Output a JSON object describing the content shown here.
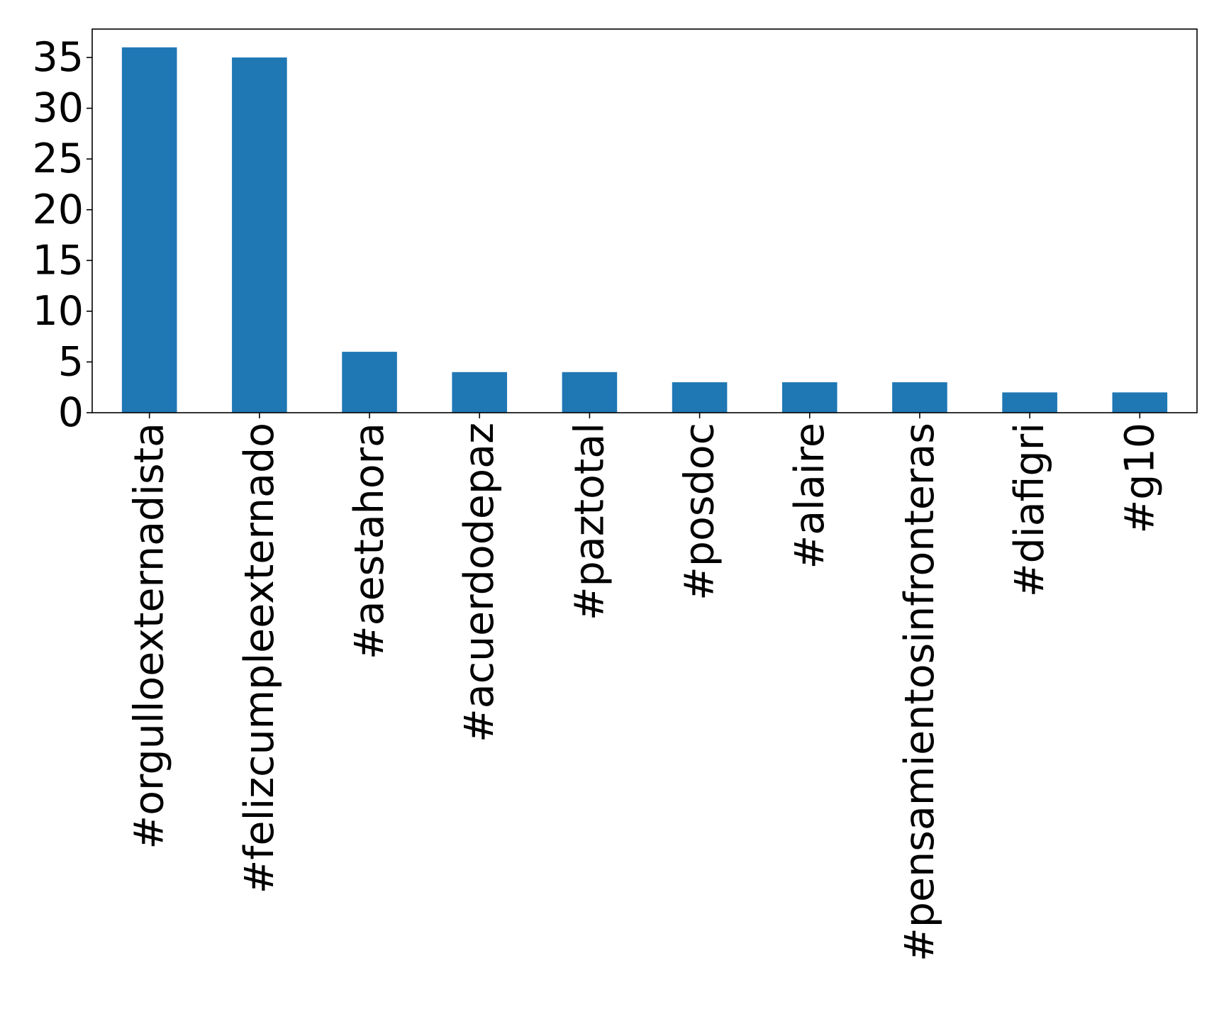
{
  "chart_data": {
    "type": "bar",
    "categories": [
      "#orgulloexternadista",
      "#felizcumpleexternado",
      "#aestahora",
      "#acuerdodepaz",
      "#paztotal",
      "#posdoc",
      "#alaire",
      "#pensamientosinfronteras",
      "#diafigri",
      "#g10"
    ],
    "values": [
      36,
      35,
      6,
      4,
      4,
      3,
      3,
      3,
      2,
      2
    ],
    "ylim": [
      0,
      37.8
    ],
    "yticks": [
      0,
      5,
      10,
      15,
      20,
      25,
      30,
      35
    ],
    "bar_color": "#1f77b4",
    "grid": false,
    "legend": "none"
  }
}
